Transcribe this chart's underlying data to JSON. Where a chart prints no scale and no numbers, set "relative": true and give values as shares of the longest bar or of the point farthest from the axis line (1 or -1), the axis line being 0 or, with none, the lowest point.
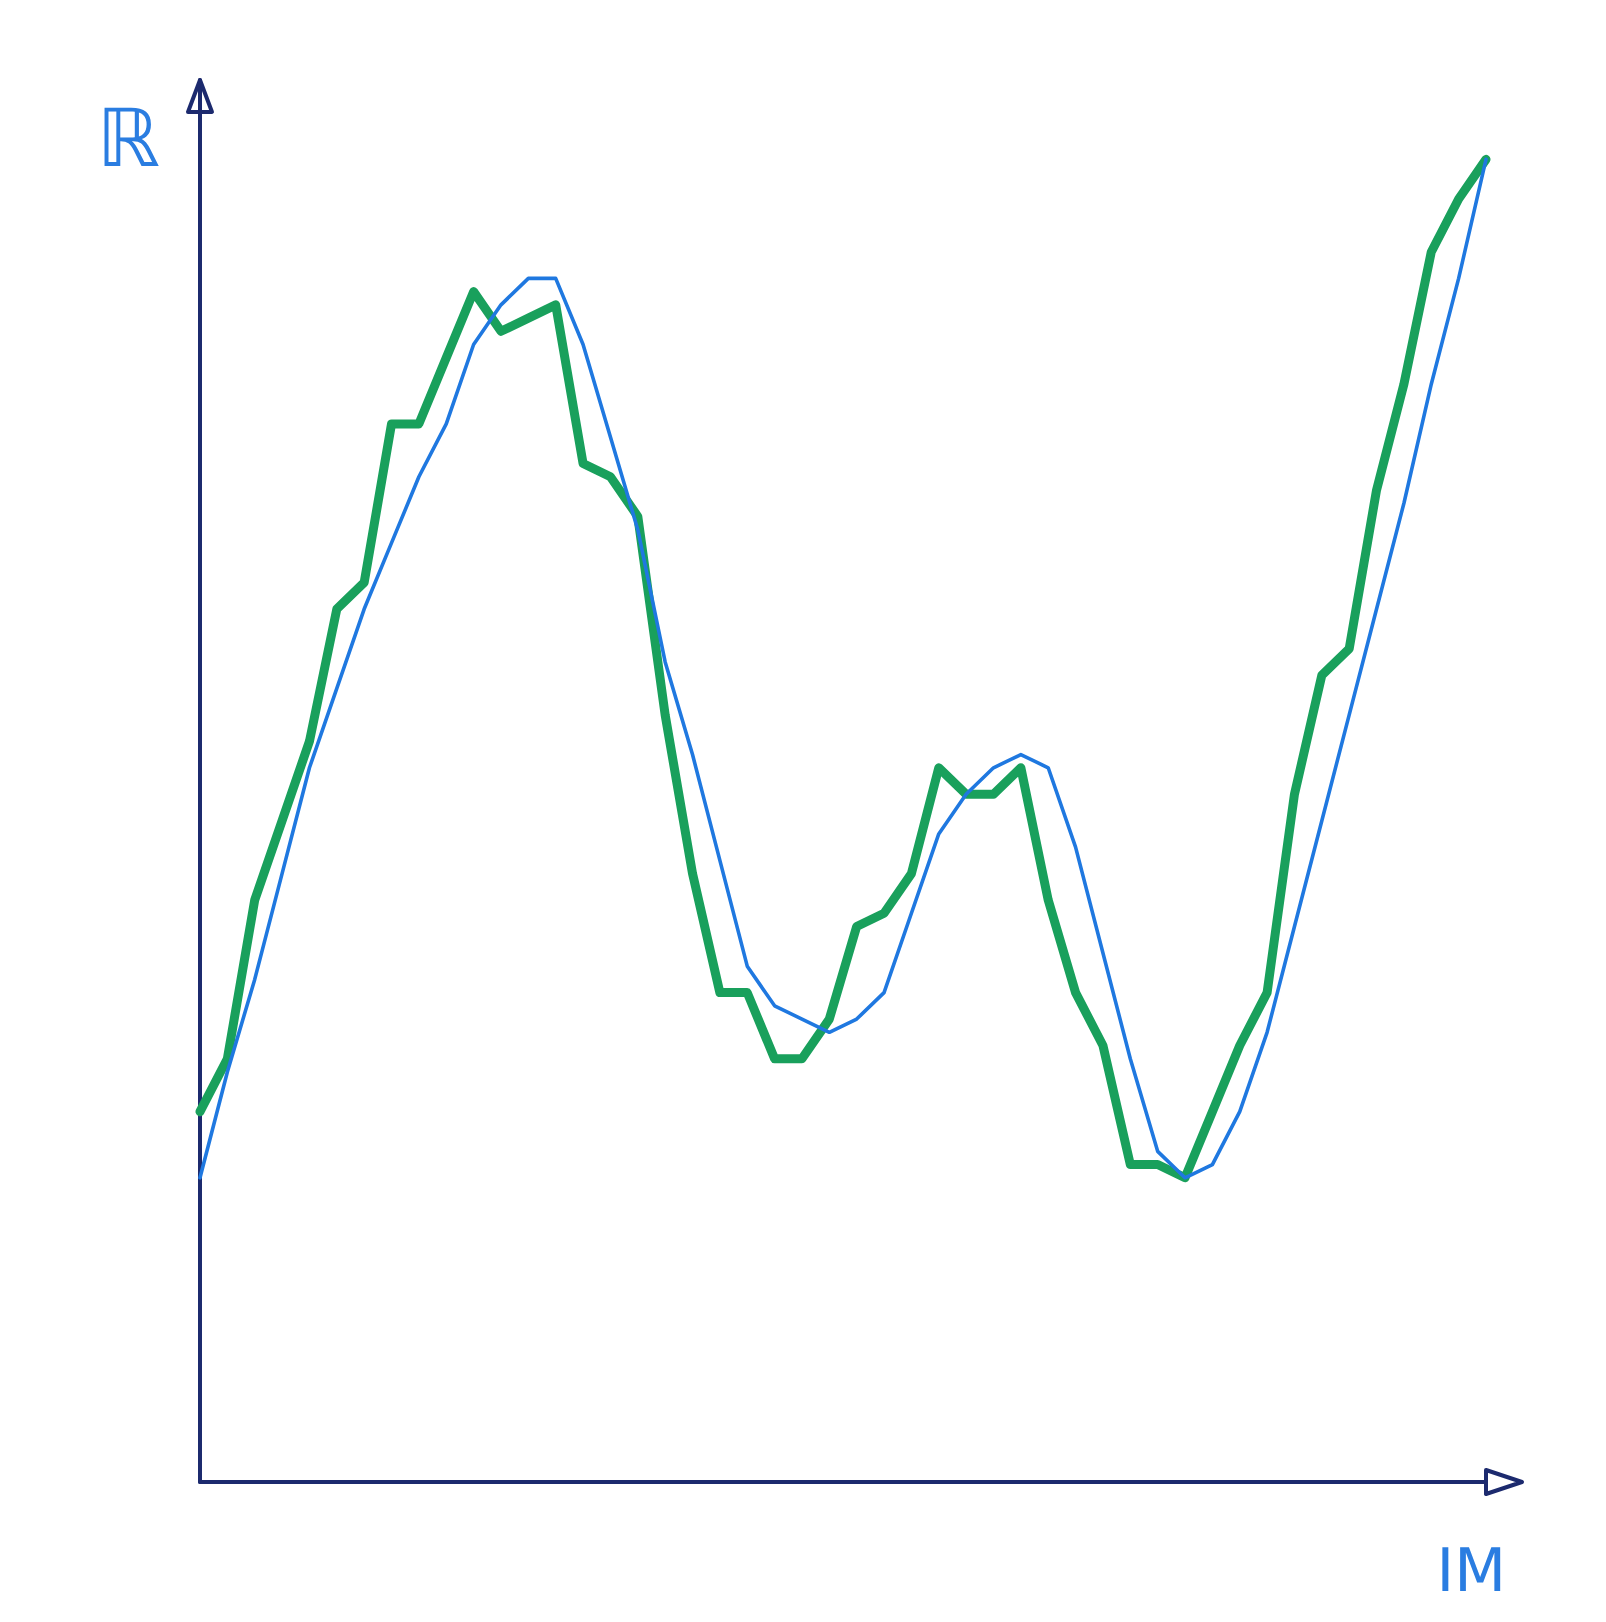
{
  "chart_data": {
    "type": "line",
    "xlabel": "IM",
    "ylabel": "ℝ",
    "relative": true,
    "marker": "none",
    "categories": [
      null,
      null,
      null,
      null,
      null,
      null,
      null,
      null,
      null,
      null,
      null,
      null,
      null,
      null,
      null,
      null,
      null,
      null,
      null,
      null,
      null,
      null,
      null,
      null,
      null,
      null,
      null,
      null,
      null,
      null,
      null,
      null,
      null,
      null,
      null,
      null,
      null,
      null,
      null,
      null,
      null,
      null,
      null,
      null,
      null,
      null,
      null,
      null
    ],
    "series": [
      {
        "color": "#1f78e0",
        "values": [
          0.23,
          0.31,
          0.38,
          0.46,
          0.54,
          0.6,
          0.66,
          0.71,
          0.76,
          0.8,
          0.86,
          0.89,
          0.91,
          0.91,
          0.86,
          0.79,
          0.72,
          0.62,
          0.55,
          0.47,
          0.39,
          0.36,
          0.35,
          0.34,
          0.35,
          0.37,
          0.43,
          0.49,
          0.52,
          0.54,
          0.55,
          0.54,
          0.48,
          0.4,
          0.32,
          0.25,
          0.23,
          0.24,
          0.28,
          0.34,
          0.42,
          0.5,
          0.58,
          0.66,
          0.74,
          0.83,
          0.91,
          1
        ]
      },
      {
        "color": "#19a05c",
        "values": [
          0.28,
          0.32,
          0.44,
          0.5,
          0.56,
          0.66,
          0.68,
          0.8,
          0.8,
          0.85,
          0.9,
          0.87,
          0.88,
          0.89,
          0.77,
          0.76,
          0.73,
          0.58,
          0.46,
          0.37,
          0.37,
          0.32,
          0.32,
          0.35,
          0.42,
          0.43,
          0.46,
          0.54,
          0.52,
          0.52,
          0.54,
          0.44,
          0.37,
          0.33,
          0.24,
          0.24,
          0.23,
          0.28,
          0.33,
          0.37,
          0.52,
          0.61,
          0.63,
          0.75,
          0.83,
          0.93,
          0.97,
          1
        ]
      }
    ]
  }
}
